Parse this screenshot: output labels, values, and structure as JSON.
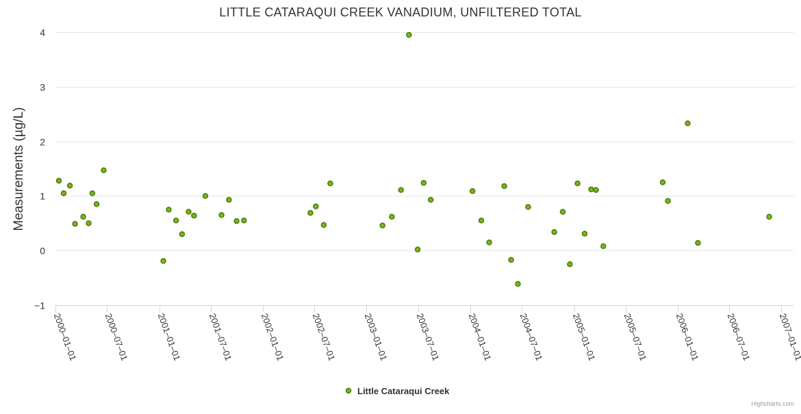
{
  "chart_data": {
    "type": "scatter",
    "title": "LITTLE CATARAQUI CREEK VANADIUM, UNFILTERED TOTAL",
    "ylabel": "Measurements (µg/L)",
    "xlabel": "",
    "ylim": [
      -1,
      4
    ],
    "yticks": [
      -1,
      0,
      1,
      2,
      3,
      4
    ],
    "xlim": [
      "2000-01-01",
      "2007-02-15"
    ],
    "xticks": [
      "2000-01-01",
      "2000-07-01",
      "2001-01-01",
      "2001-07-01",
      "2002-01-01",
      "2002-07-01",
      "2003-01-01",
      "2003-07-01",
      "2004-01-01",
      "2004-07-01",
      "2005-01-01",
      "2005-07-01",
      "2006-01-01",
      "2006-07-01",
      "2007-01-01"
    ],
    "grid": true,
    "legend_position": "bottom-center",
    "series": [
      {
        "name": "Little Cataraqui Creek",
        "color": "#7cb518",
        "points": [
          {
            "x": "2000-01-13",
            "y": 1.28
          },
          {
            "x": "2000-01-30",
            "y": 1.05
          },
          {
            "x": "2000-02-21",
            "y": 1.19
          },
          {
            "x": "2000-03-10",
            "y": 0.49
          },
          {
            "x": "2000-04-08",
            "y": 0.62
          },
          {
            "x": "2000-04-27",
            "y": 0.5
          },
          {
            "x": "2000-05-10",
            "y": 1.05
          },
          {
            "x": "2000-05-25",
            "y": 0.85
          },
          {
            "x": "2000-06-19",
            "y": 1.47
          },
          {
            "x": "2001-01-15",
            "y": -0.19
          },
          {
            "x": "2001-02-03",
            "y": 0.75
          },
          {
            "x": "2001-03-01",
            "y": 0.55
          },
          {
            "x": "2001-03-22",
            "y": 0.3
          },
          {
            "x": "2001-04-14",
            "y": 0.71
          },
          {
            "x": "2001-05-03",
            "y": 0.64
          },
          {
            "x": "2001-06-12",
            "y": 1.0
          },
          {
            "x": "2001-08-08",
            "y": 0.65
          },
          {
            "x": "2001-09-03",
            "y": 0.93
          },
          {
            "x": "2001-09-30",
            "y": 0.54
          },
          {
            "x": "2001-10-26",
            "y": 0.55
          },
          {
            "x": "2002-06-17",
            "y": 0.69
          },
          {
            "x": "2002-07-06",
            "y": 0.81
          },
          {
            "x": "2002-08-03",
            "y": 0.47
          },
          {
            "x": "2002-08-26",
            "y": 1.23
          },
          {
            "x": "2003-02-26",
            "y": 0.46
          },
          {
            "x": "2003-03-31",
            "y": 0.62
          },
          {
            "x": "2003-05-02",
            "y": 1.11
          },
          {
            "x": "2003-05-30",
            "y": 3.95
          },
          {
            "x": "2003-06-30",
            "y": 0.02
          },
          {
            "x": "2003-07-21",
            "y": 1.24
          },
          {
            "x": "2003-08-15",
            "y": 0.93
          },
          {
            "x": "2004-01-09",
            "y": 1.09
          },
          {
            "x": "2004-02-09",
            "y": 0.55
          },
          {
            "x": "2004-03-08",
            "y": 0.15
          },
          {
            "x": "2004-04-30",
            "y": 1.18
          },
          {
            "x": "2004-05-24",
            "y": -0.17
          },
          {
            "x": "2004-06-17",
            "y": -0.61
          },
          {
            "x": "2004-07-23",
            "y": 0.8
          },
          {
            "x": "2004-10-23",
            "y": 0.34
          },
          {
            "x": "2004-11-22",
            "y": 0.71
          },
          {
            "x": "2004-12-17",
            "y": -0.25
          },
          {
            "x": "2005-01-13",
            "y": 1.23
          },
          {
            "x": "2005-02-07",
            "y": 0.31
          },
          {
            "x": "2005-03-02",
            "y": 1.12
          },
          {
            "x": "2005-03-19",
            "y": 1.11
          },
          {
            "x": "2005-04-14",
            "y": 0.08
          },
          {
            "x": "2005-11-09",
            "y": 1.25
          },
          {
            "x": "2005-11-27",
            "y": 0.91
          },
          {
            "x": "2006-02-05",
            "y": 2.33
          },
          {
            "x": "2006-03-13",
            "y": 0.14
          },
          {
            "x": "2006-11-19",
            "y": 0.62
          }
        ]
      }
    ]
  },
  "credits": "Highcharts.com"
}
